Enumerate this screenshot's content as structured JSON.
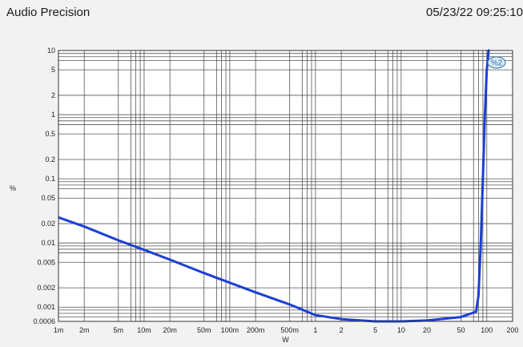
{
  "header": {
    "app_title": "Audio Precision",
    "timestamp": "05/23/22 09:25:10"
  },
  "chart_data": {
    "type": "line",
    "title": "",
    "xlabel": "W",
    "ylabel": "%",
    "x_scale": "log",
    "y_scale": "log",
    "xlim": [
      0.001,
      200
    ],
    "ylim": [
      0.0006,
      10
    ],
    "x_ticks": [
      {
        "v": 0.001,
        "label": "1m"
      },
      {
        "v": 0.002,
        "label": "2m"
      },
      {
        "v": 0.005,
        "label": "5m"
      },
      {
        "v": 0.01,
        "label": "10m"
      },
      {
        "v": 0.02,
        "label": "20m"
      },
      {
        "v": 0.05,
        "label": "50m"
      },
      {
        "v": 0.1,
        "label": "100m"
      },
      {
        "v": 0.2,
        "label": "200m"
      },
      {
        "v": 0.5,
        "label": "500m"
      },
      {
        "v": 1,
        "label": "1"
      },
      {
        "v": 2,
        "label": "2"
      },
      {
        "v": 5,
        "label": "5"
      },
      {
        "v": 10,
        "label": "10"
      },
      {
        "v": 20,
        "label": "20"
      },
      {
        "v": 50,
        "label": "50"
      },
      {
        "v": 100,
        "label": "100"
      },
      {
        "v": 200,
        "label": "200"
      }
    ],
    "y_ticks": [
      {
        "v": 10,
        "label": "10"
      },
      {
        "v": 5,
        "label": "5"
      },
      {
        "v": 2,
        "label": "2"
      },
      {
        "v": 1,
        "label": "1"
      },
      {
        "v": 0.5,
        "label": "0.5"
      },
      {
        "v": 0.2,
        "label": "0.2"
      },
      {
        "v": 0.1,
        "label": "0.1"
      },
      {
        "v": 0.05,
        "label": "0.05"
      },
      {
        "v": 0.02,
        "label": "0.02"
      },
      {
        "v": 0.01,
        "label": "0.01"
      },
      {
        "v": 0.005,
        "label": "0.005"
      },
      {
        "v": 0.002,
        "label": "0.002"
      },
      {
        "v": 0.001,
        "label": "0.001"
      },
      {
        "v": 0.0006,
        "label": "0.0006"
      }
    ],
    "grid": true,
    "trace_tag": "%2",
    "series": [
      {
        "color": "#1c3fd6",
        "points": [
          [
            0.001,
            0.025
          ],
          [
            0.002,
            0.018
          ],
          [
            0.005,
            0.011
          ],
          [
            0.01,
            0.0078
          ],
          [
            0.02,
            0.0055
          ],
          [
            0.05,
            0.0034
          ],
          [
            0.1,
            0.0024
          ],
          [
            0.2,
            0.0017
          ],
          [
            0.5,
            0.0011
          ],
          [
            1,
            0.00075
          ],
          [
            2,
            0.00065
          ],
          [
            5,
            0.0006
          ],
          [
            10,
            0.0006
          ],
          [
            20,
            0.00062
          ],
          [
            50,
            0.0007
          ],
          [
            75,
            0.00085
          ],
          [
            80,
            0.0015
          ],
          [
            85,
            0.01
          ],
          [
            90,
            0.1
          ],
          [
            95,
            1
          ],
          [
            100,
            5
          ],
          [
            105,
            10
          ]
        ]
      }
    ]
  }
}
